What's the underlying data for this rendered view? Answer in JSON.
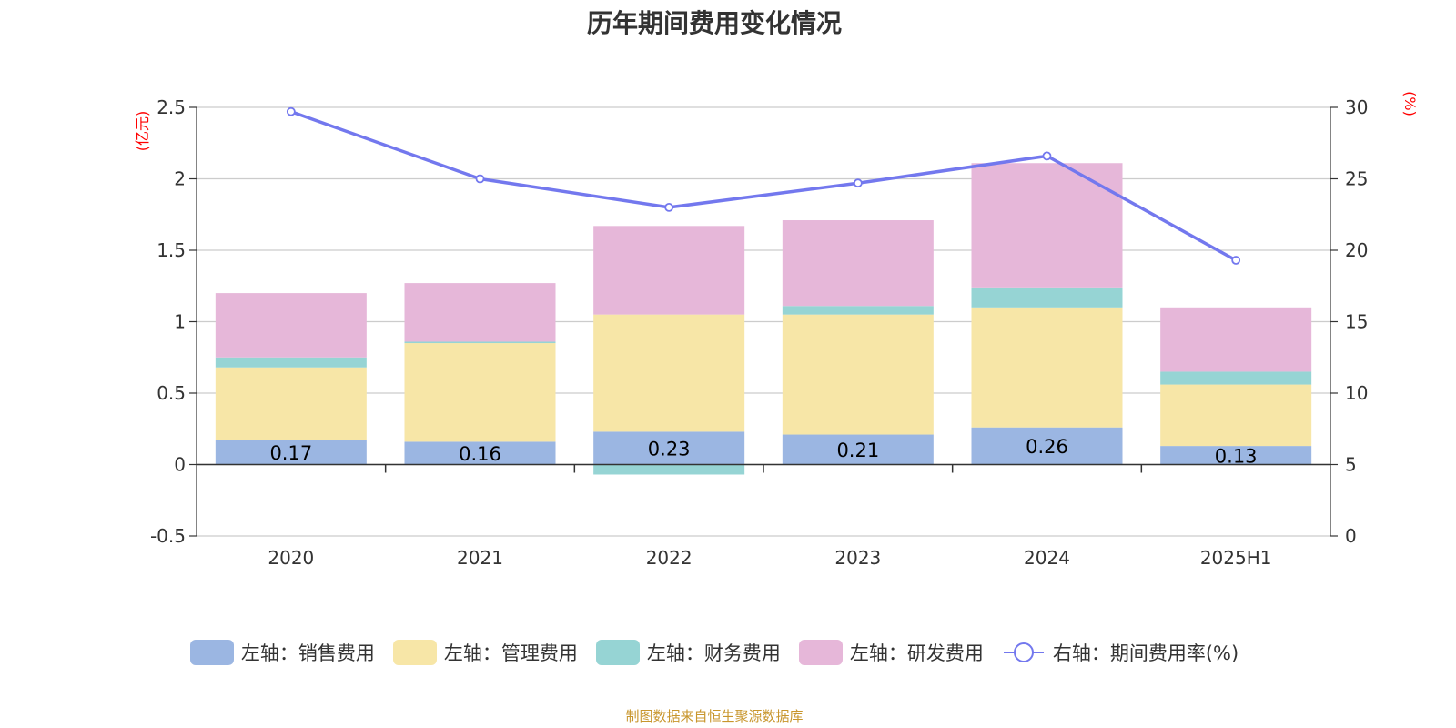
{
  "title": "历年期间费用变化情况",
  "source_note": "制图数据来自恒生聚源数据库",
  "colors": {
    "sales": "#9bb6e2",
    "admin": "#f7e6a7",
    "finance": "#96d4d4",
    "rnd": "#e6b7d9",
    "rate_line": "#7378ee",
    "unit_text": "#ff0000",
    "source_text": "#c8962d"
  },
  "chart_data": {
    "type": "bar",
    "stacked": true,
    "title": "历年期间费用变化情况",
    "categories": [
      "2020",
      "2021",
      "2022",
      "2023",
      "2024",
      "2025H1"
    ],
    "y_left": {
      "unit": "(亿元)",
      "ylim": [
        -0.5,
        2.5
      ],
      "ticks": [
        -0.5,
        0,
        0.5,
        1,
        1.5,
        2,
        2.5
      ],
      "tick_labels": [
        "-0.5",
        "0",
        "0.5",
        "1",
        "1.5",
        "2",
        "2.5"
      ]
    },
    "y_right": {
      "unit": "(%)",
      "ylim": [
        0,
        30
      ],
      "ticks": [
        0,
        5,
        10,
        15,
        20,
        25,
        30
      ],
      "tick_labels": [
        "0",
        "5",
        "10",
        "15",
        "20",
        "25",
        "30"
      ]
    },
    "grid": true,
    "legend_position": "bottom",
    "series": [
      {
        "name": "左轴：销售费用",
        "axis": "left",
        "kind": "bar",
        "color_key": "sales",
        "values": [
          0.17,
          0.16,
          0.23,
          0.21,
          0.26,
          0.13
        ],
        "data_labels": [
          "0.17",
          "0.16",
          "0.23",
          "0.21",
          "0.26",
          "0.13"
        ]
      },
      {
        "name": "左轴：管理费用",
        "axis": "left",
        "kind": "bar",
        "color_key": "admin",
        "values": [
          0.51,
          0.69,
          0.82,
          0.84,
          0.84,
          0.43
        ]
      },
      {
        "name": "左轴：财务费用",
        "axis": "left",
        "kind": "bar",
        "color_key": "finance",
        "values": [
          0.07,
          0.01,
          -0.07,
          0.06,
          0.14,
          0.09
        ]
      },
      {
        "name": "左轴：研发费用",
        "axis": "left",
        "kind": "bar",
        "color_key": "rnd",
        "values": [
          0.45,
          0.41,
          0.62,
          0.6,
          0.87,
          0.45
        ]
      },
      {
        "name": "右轴：期间费用率(%)",
        "axis": "right",
        "kind": "line",
        "color_key": "rate_line",
        "values": [
          29.7,
          25.0,
          23.0,
          24.7,
          26.6,
          19.3
        ]
      }
    ]
  }
}
